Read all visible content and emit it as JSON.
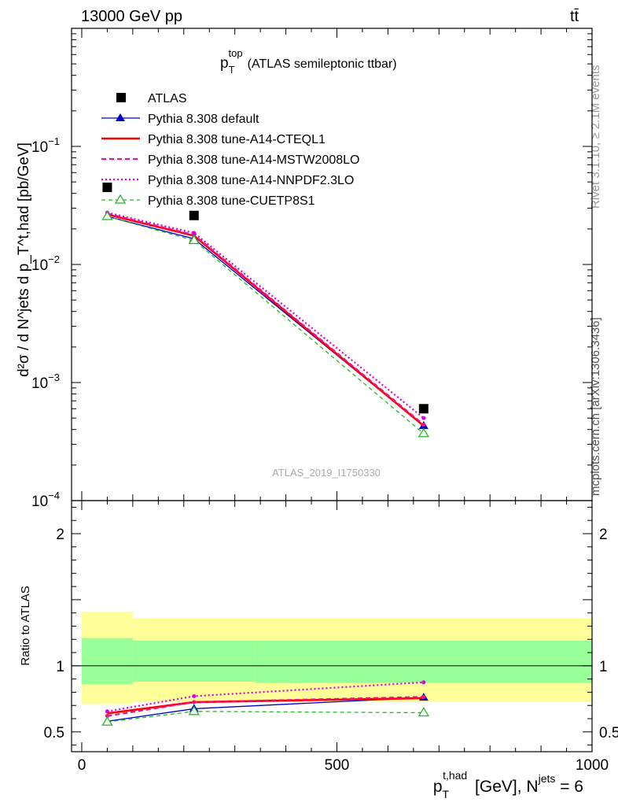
{
  "header": {
    "energy_label": "13000 GeV pp",
    "process_label": "tt̄"
  },
  "side_labels": {
    "rivet": "Rivet 3.1.10, ≥ 2.1M events",
    "mcplots": "mcplots.cern.ch [arXiv:1306.3436]"
  },
  "chart_data": [
    {
      "type": "line",
      "panel": "main",
      "title_main": "p",
      "title_sub": "T",
      "title_sup": "top",
      "title_rest": "(ATLAS semileptonic ttbar)",
      "analysis_id": "ATLAS_2019_I1750330",
      "ylabel": "d²σ / d N^jets d p_T^t,had [pb/GeV]",
      "yscale": "log",
      "ylim": [
        0.0001,
        1
      ],
      "xlim": [
        -20,
        1000
      ],
      "yticks": [
        {
          "value": 0.1,
          "base": "10",
          "exp": "−1"
        },
        {
          "value": 0.01,
          "base": "10",
          "exp": "−2"
        },
        {
          "value": 0.001,
          "base": "10",
          "exp": "−3"
        },
        {
          "value": 0.0001,
          "base": "10",
          "exp": "−4"
        }
      ],
      "x": [
        50,
        220,
        670
      ],
      "series": [
        {
          "name": "ATLAS",
          "values": [
            0.045,
            0.026,
            0.0006
          ],
          "color": "#000000",
          "style": "data"
        },
        {
          "name": "Pythia 8.308 default",
          "values": [
            0.0255,
            0.0165,
            0.00043
          ],
          "color": "#0000cc",
          "style": "solid-thin",
          "marker": "triangle-filled"
        },
        {
          "name": "Pythia 8.308 tune-A14-CTEQL1",
          "values": [
            0.0265,
            0.0175,
            0.00043
          ],
          "color": "#ff0000",
          "style": "solid-thick",
          "marker": "none"
        },
        {
          "name": "Pythia 8.308 tune-A14-MSTW2008LO",
          "values": [
            0.027,
            0.0178,
            0.00044
          ],
          "color": "#ee1188",
          "style": "dashed",
          "marker": "dot"
        },
        {
          "name": "Pythia 8.308 tune-A14-NNPDF2.3LO",
          "values": [
            0.0275,
            0.0185,
            0.0005
          ],
          "color": "#dd00dd",
          "style": "dotted",
          "marker": "dot"
        },
        {
          "name": "Pythia 8.308 tune-CUETP8S1",
          "values": [
            0.0255,
            0.016,
            0.00037
          ],
          "color": "#22bb22",
          "style": "dashed-thin",
          "marker": "triangle-open"
        }
      ]
    },
    {
      "type": "line",
      "panel": "ratio",
      "ylabel": "Ratio to ATLAS",
      "ylim": [
        0.35,
        2.25
      ],
      "yticks": [
        0.5,
        1,
        2
      ],
      "xticks": [
        0,
        500,
        1000
      ],
      "xlabel": "p_T^t,had [GeV], N^jets = 6",
      "bands": {
        "yellow": [
          {
            "x0": 0,
            "x1": 100,
            "lo": 0.71,
            "hi": 1.41
          },
          {
            "x0": 100,
            "x1": 1000,
            "lo": 0.725,
            "hi": 1.36
          }
        ],
        "green": [
          {
            "x0": 0,
            "x1": 100,
            "lo": 0.86,
            "hi": 1.21
          },
          {
            "x0": 100,
            "x1": 340,
            "lo": 0.88,
            "hi": 1.19
          },
          {
            "x0": 340,
            "x1": 1000,
            "lo": 0.87,
            "hi": 1.19
          }
        ]
      },
      "x": [
        50,
        220,
        670
      ],
      "series": [
        {
          "name": "Pythia 8.308 default",
          "values": [
            0.58,
            0.675,
            0.76
          ]
        },
        {
          "name": "Pythia 8.308 tune-A14-CTEQL1",
          "values": [
            0.64,
            0.725,
            0.755
          ]
        },
        {
          "name": "Pythia 8.308 tune-A14-MSTW2008LO",
          "values": [
            0.62,
            0.725,
            0.765
          ]
        },
        {
          "name": "Pythia 8.308 tune-A14-NNPDF2.3LO",
          "values": [
            0.655,
            0.77,
            0.875
          ]
        },
        {
          "name": "Pythia 8.308 tune-CUETP8S1",
          "values": [
            0.575,
            0.655,
            0.645
          ]
        }
      ]
    }
  ]
}
